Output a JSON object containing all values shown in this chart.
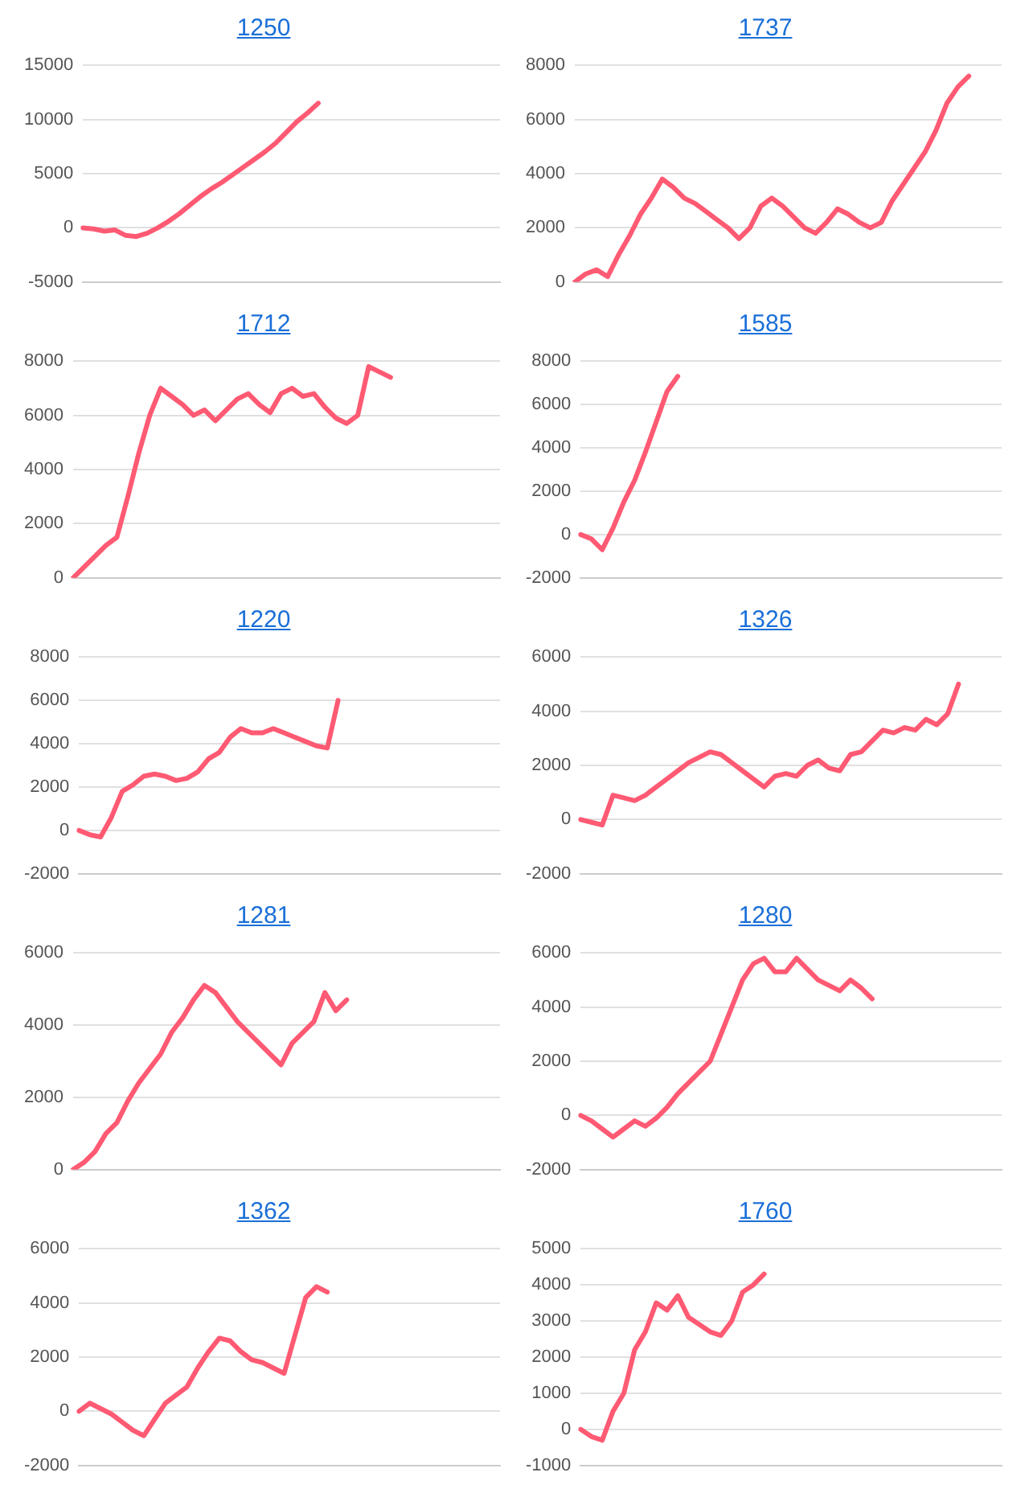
{
  "chart_data": [
    {
      "type": "line",
      "title": "1250",
      "categories": [
        null,
        null,
        null,
        null,
        null,
        null,
        null,
        null,
        null,
        null,
        null,
        null,
        null,
        null,
        null,
        null,
        null,
        null,
        null,
        null,
        null,
        null,
        null,
        null,
        null,
        null,
        null,
        null,
        null,
        null,
        null,
        null,
        null,
        null,
        null,
        null,
        null,
        null,
        null,
        null
      ],
      "series": [
        {
          "color": "#ff5a73",
          "values": [
            0,
            -100,
            -300,
            -200,
            -700,
            -800,
            -500,
            0,
            600,
            1300,
            2100,
            2900,
            3600,
            4200,
            4900,
            5600,
            6300,
            7000,
            7800,
            8800,
            9800,
            10600,
            11500,
            null,
            null,
            null,
            null,
            null,
            null,
            null,
            null,
            null,
            null,
            null,
            null,
            null,
            null,
            null,
            null,
            null
          ]
        }
      ],
      "ylim": [
        -5000,
        15000
      ],
      "yticks": [
        -5000,
        0,
        5000,
        10000,
        15000
      ],
      "grid": "y",
      "tick_labels": "y",
      "marker": "none",
      "line_style": "solid"
    },
    {
      "type": "line",
      "title": "1737",
      "categories": [
        null,
        null,
        null,
        null,
        null,
        null,
        null,
        null,
        null,
        null,
        null,
        null,
        null,
        null,
        null,
        null,
        null,
        null,
        null,
        null,
        null,
        null,
        null,
        null,
        null,
        null,
        null,
        null,
        null,
        null,
        null,
        null,
        null,
        null,
        null,
        null,
        null,
        null,
        null,
        null
      ],
      "series": [
        {
          "color": "#ff5a73",
          "values": [
            0,
            300,
            450,
            200,
            1000,
            1700,
            2500,
            3100,
            3800,
            3500,
            3100,
            2900,
            2600,
            2300,
            2000,
            1600,
            2000,
            2800,
            3100,
            2800,
            2400,
            2000,
            1800,
            2200,
            2700,
            2500,
            2200,
            2000,
            2200,
            3000,
            3600,
            4200,
            4800,
            5600,
            6600,
            7200,
            7600,
            null,
            null,
            null
          ]
        }
      ],
      "ylim": [
        0,
        8000
      ],
      "yticks": [
        0,
        2000,
        4000,
        6000,
        8000
      ],
      "grid": "y",
      "tick_labels": "y",
      "marker": "none",
      "line_style": "solid"
    },
    {
      "type": "line",
      "title": "1712",
      "categories": [
        null,
        null,
        null,
        null,
        null,
        null,
        null,
        null,
        null,
        null,
        null,
        null,
        null,
        null,
        null,
        null,
        null,
        null,
        null,
        null,
        null,
        null,
        null,
        null,
        null,
        null,
        null,
        null,
        null,
        null,
        null,
        null,
        null,
        null,
        null,
        null,
        null,
        null,
        null,
        null
      ],
      "series": [
        {
          "color": "#ff5a73",
          "values": [
            0,
            400,
            800,
            1200,
            1500,
            3000,
            4600,
            6000,
            7000,
            6700,
            6400,
            6000,
            6200,
            5800,
            6200,
            6600,
            6800,
            6400,
            6100,
            6800,
            7000,
            6700,
            6800,
            6300,
            5900,
            5700,
            6000,
            7800,
            7600,
            7400,
            null,
            null,
            null,
            null,
            null,
            null,
            null,
            null,
            null,
            null
          ]
        }
      ],
      "ylim": [
        0,
        8000
      ],
      "yticks": [
        0,
        2000,
        4000,
        6000,
        8000
      ],
      "grid": "y",
      "tick_labels": "y",
      "marker": "none",
      "line_style": "solid"
    },
    {
      "type": "line",
      "title": "1585",
      "categories": [
        null,
        null,
        null,
        null,
        null,
        null,
        null,
        null,
        null,
        null,
        null,
        null,
        null,
        null,
        null,
        null,
        null,
        null,
        null,
        null,
        null,
        null,
        null,
        null,
        null,
        null,
        null,
        null,
        null,
        null,
        null,
        null,
        null,
        null,
        null,
        null,
        null,
        null,
        null,
        null
      ],
      "series": [
        {
          "color": "#ff5a73",
          "values": [
            0,
            -200,
            -700,
            300,
            1500,
            2500,
            3800,
            5200,
            6600,
            7300,
            null,
            null,
            null,
            null,
            null,
            null,
            null,
            null,
            null,
            null,
            null,
            null,
            null,
            null,
            null,
            null,
            null,
            null,
            null,
            null,
            null,
            null,
            null,
            null,
            null,
            null,
            null,
            null,
            null,
            null
          ]
        }
      ],
      "ylim": [
        -2000,
        8000
      ],
      "yticks": [
        -2000,
        0,
        2000,
        4000,
        6000,
        8000
      ],
      "grid": "y",
      "tick_labels": "y",
      "marker": "none",
      "line_style": "solid"
    },
    {
      "type": "line",
      "title": "1220",
      "categories": [
        null,
        null,
        null,
        null,
        null,
        null,
        null,
        null,
        null,
        null,
        null,
        null,
        null,
        null,
        null,
        null,
        null,
        null,
        null,
        null,
        null,
        null,
        null,
        null,
        null,
        null,
        null,
        null,
        null,
        null,
        null,
        null,
        null,
        null,
        null,
        null,
        null,
        null,
        null,
        null
      ],
      "series": [
        {
          "color": "#ff5a73",
          "values": [
            0,
            -200,
            -300,
            600,
            1800,
            2100,
            2500,
            2600,
            2500,
            2300,
            2400,
            2700,
            3300,
            3600,
            4300,
            4700,
            4500,
            4500,
            4700,
            4500,
            4300,
            4100,
            3900,
            3800,
            6000,
            null,
            null,
            null,
            null,
            null,
            null,
            null,
            null,
            null,
            null,
            null,
            null,
            null,
            null,
            null
          ]
        }
      ],
      "ylim": [
        -2000,
        8000
      ],
      "yticks": [
        -2000,
        0,
        2000,
        4000,
        6000,
        8000
      ],
      "grid": "y",
      "tick_labels": "y",
      "marker": "none",
      "line_style": "solid"
    },
    {
      "type": "line",
      "title": "1326",
      "categories": [
        null,
        null,
        null,
        null,
        null,
        null,
        null,
        null,
        null,
        null,
        null,
        null,
        null,
        null,
        null,
        null,
        null,
        null,
        null,
        null,
        null,
        null,
        null,
        null,
        null,
        null,
        null,
        null,
        null,
        null,
        null,
        null,
        null,
        null,
        null,
        null,
        null,
        null,
        null,
        null
      ],
      "series": [
        {
          "color": "#ff5a73",
          "values": [
            0,
            -100,
            -200,
            900,
            800,
            700,
            900,
            1200,
            1500,
            1800,
            2100,
            2300,
            2500,
            2400,
            2100,
            1800,
            1500,
            1200,
            1600,
            1700,
            1600,
            2000,
            2200,
            1900,
            1800,
            2400,
            2500,
            2900,
            3300,
            3200,
            3400,
            3300,
            3700,
            3500,
            3900,
            5000,
            null,
            null,
            null,
            null
          ]
        }
      ],
      "ylim": [
        -2000,
        6000
      ],
      "yticks": [
        -2000,
        0,
        2000,
        4000,
        6000
      ],
      "grid": "y",
      "tick_labels": "y",
      "marker": "none",
      "line_style": "solid"
    },
    {
      "type": "line",
      "title": "1281",
      "categories": [
        null,
        null,
        null,
        null,
        null,
        null,
        null,
        null,
        null,
        null,
        null,
        null,
        null,
        null,
        null,
        null,
        null,
        null,
        null,
        null,
        null,
        null,
        null,
        null,
        null,
        null,
        null,
        null,
        null,
        null,
        null,
        null,
        null,
        null,
        null,
        null,
        null,
        null,
        null,
        null
      ],
      "series": [
        {
          "color": "#ff5a73",
          "values": [
            0,
            200,
            500,
            1000,
            1300,
            1900,
            2400,
            2800,
            3200,
            3800,
            4200,
            4700,
            5100,
            4900,
            4500,
            4100,
            3800,
            3500,
            3200,
            2900,
            3500,
            3800,
            4100,
            4900,
            4400,
            4700,
            null,
            null,
            null,
            null,
            null,
            null,
            null,
            null,
            null,
            null,
            null,
            null,
            null,
            null
          ]
        }
      ],
      "ylim": [
        0,
        6000
      ],
      "yticks": [
        0,
        2000,
        4000,
        6000
      ],
      "grid": "y",
      "tick_labels": "y",
      "marker": "none",
      "line_style": "solid"
    },
    {
      "type": "line",
      "title": "1280",
      "categories": [
        null,
        null,
        null,
        null,
        null,
        null,
        null,
        null,
        null,
        null,
        null,
        null,
        null,
        null,
        null,
        null,
        null,
        null,
        null,
        null,
        null,
        null,
        null,
        null,
        null,
        null,
        null,
        null,
        null,
        null,
        null,
        null,
        null,
        null,
        null,
        null,
        null,
        null,
        null,
        null
      ],
      "series": [
        {
          "color": "#ff5a73",
          "values": [
            0,
            -200,
            -500,
            -800,
            -500,
            -200,
            -400,
            -100,
            300,
            800,
            1200,
            1600,
            2000,
            3000,
            4000,
            5000,
            5600,
            5800,
            5300,
            5300,
            5800,
            5400,
            5000,
            4800,
            4600,
            5000,
            4700,
            4300,
            null,
            null,
            null,
            null,
            null,
            null,
            null,
            null,
            null,
            null,
            null,
            null
          ]
        }
      ],
      "ylim": [
        -2000,
        6000
      ],
      "yticks": [
        -2000,
        0,
        2000,
        4000,
        6000
      ],
      "grid": "y",
      "tick_labels": "y",
      "marker": "none",
      "line_style": "solid"
    },
    {
      "type": "line",
      "title": "1362",
      "categories": [
        null,
        null,
        null,
        null,
        null,
        null,
        null,
        null,
        null,
        null,
        null,
        null,
        null,
        null,
        null,
        null,
        null,
        null,
        null,
        null,
        null,
        null,
        null,
        null,
        null,
        null,
        null,
        null,
        null,
        null,
        null,
        null,
        null,
        null,
        null,
        null,
        null,
        null,
        null,
        null
      ],
      "series": [
        {
          "color": "#ff5a73",
          "values": [
            0,
            300,
            100,
            -100,
            -400,
            -700,
            -900,
            -300,
            300,
            600,
            900,
            1600,
            2200,
            2700,
            2600,
            2200,
            1900,
            1800,
            1600,
            1400,
            2800,
            4200,
            4600,
            4400,
            null,
            null,
            null,
            null,
            null,
            null,
            null,
            null,
            null,
            null,
            null,
            null,
            null,
            null,
            null,
            null
          ]
        }
      ],
      "ylim": [
        -2000,
        6000
      ],
      "yticks": [
        -2000,
        0,
        2000,
        4000,
        6000
      ],
      "grid": "y",
      "tick_labels": "y",
      "marker": "none",
      "line_style": "solid"
    },
    {
      "type": "line",
      "title": "1760",
      "categories": [
        null,
        null,
        null,
        null,
        null,
        null,
        null,
        null,
        null,
        null,
        null,
        null,
        null,
        null,
        null,
        null,
        null,
        null,
        null,
        null,
        null,
        null,
        null,
        null,
        null,
        null,
        null,
        null,
        null,
        null,
        null,
        null,
        null,
        null,
        null,
        null,
        null,
        null,
        null,
        null
      ],
      "series": [
        {
          "color": "#ff5a73",
          "values": [
            0,
            -200,
            -300,
            500,
            1000,
            2200,
            2700,
            3500,
            3300,
            3700,
            3100,
            2900,
            2700,
            2600,
            3000,
            3800,
            4000,
            4300,
            null,
            null,
            null,
            null,
            null,
            null,
            null,
            null,
            null,
            null,
            null,
            null,
            null,
            null,
            null,
            null,
            null,
            null,
            null,
            null,
            null,
            null
          ]
        }
      ],
      "ylim": [
        -1000,
        5000
      ],
      "yticks": [
        -1000,
        0,
        1000,
        2000,
        3000,
        4000,
        5000
      ],
      "grid": "y",
      "tick_labels": "y",
      "marker": "none",
      "line_style": "solid"
    }
  ]
}
